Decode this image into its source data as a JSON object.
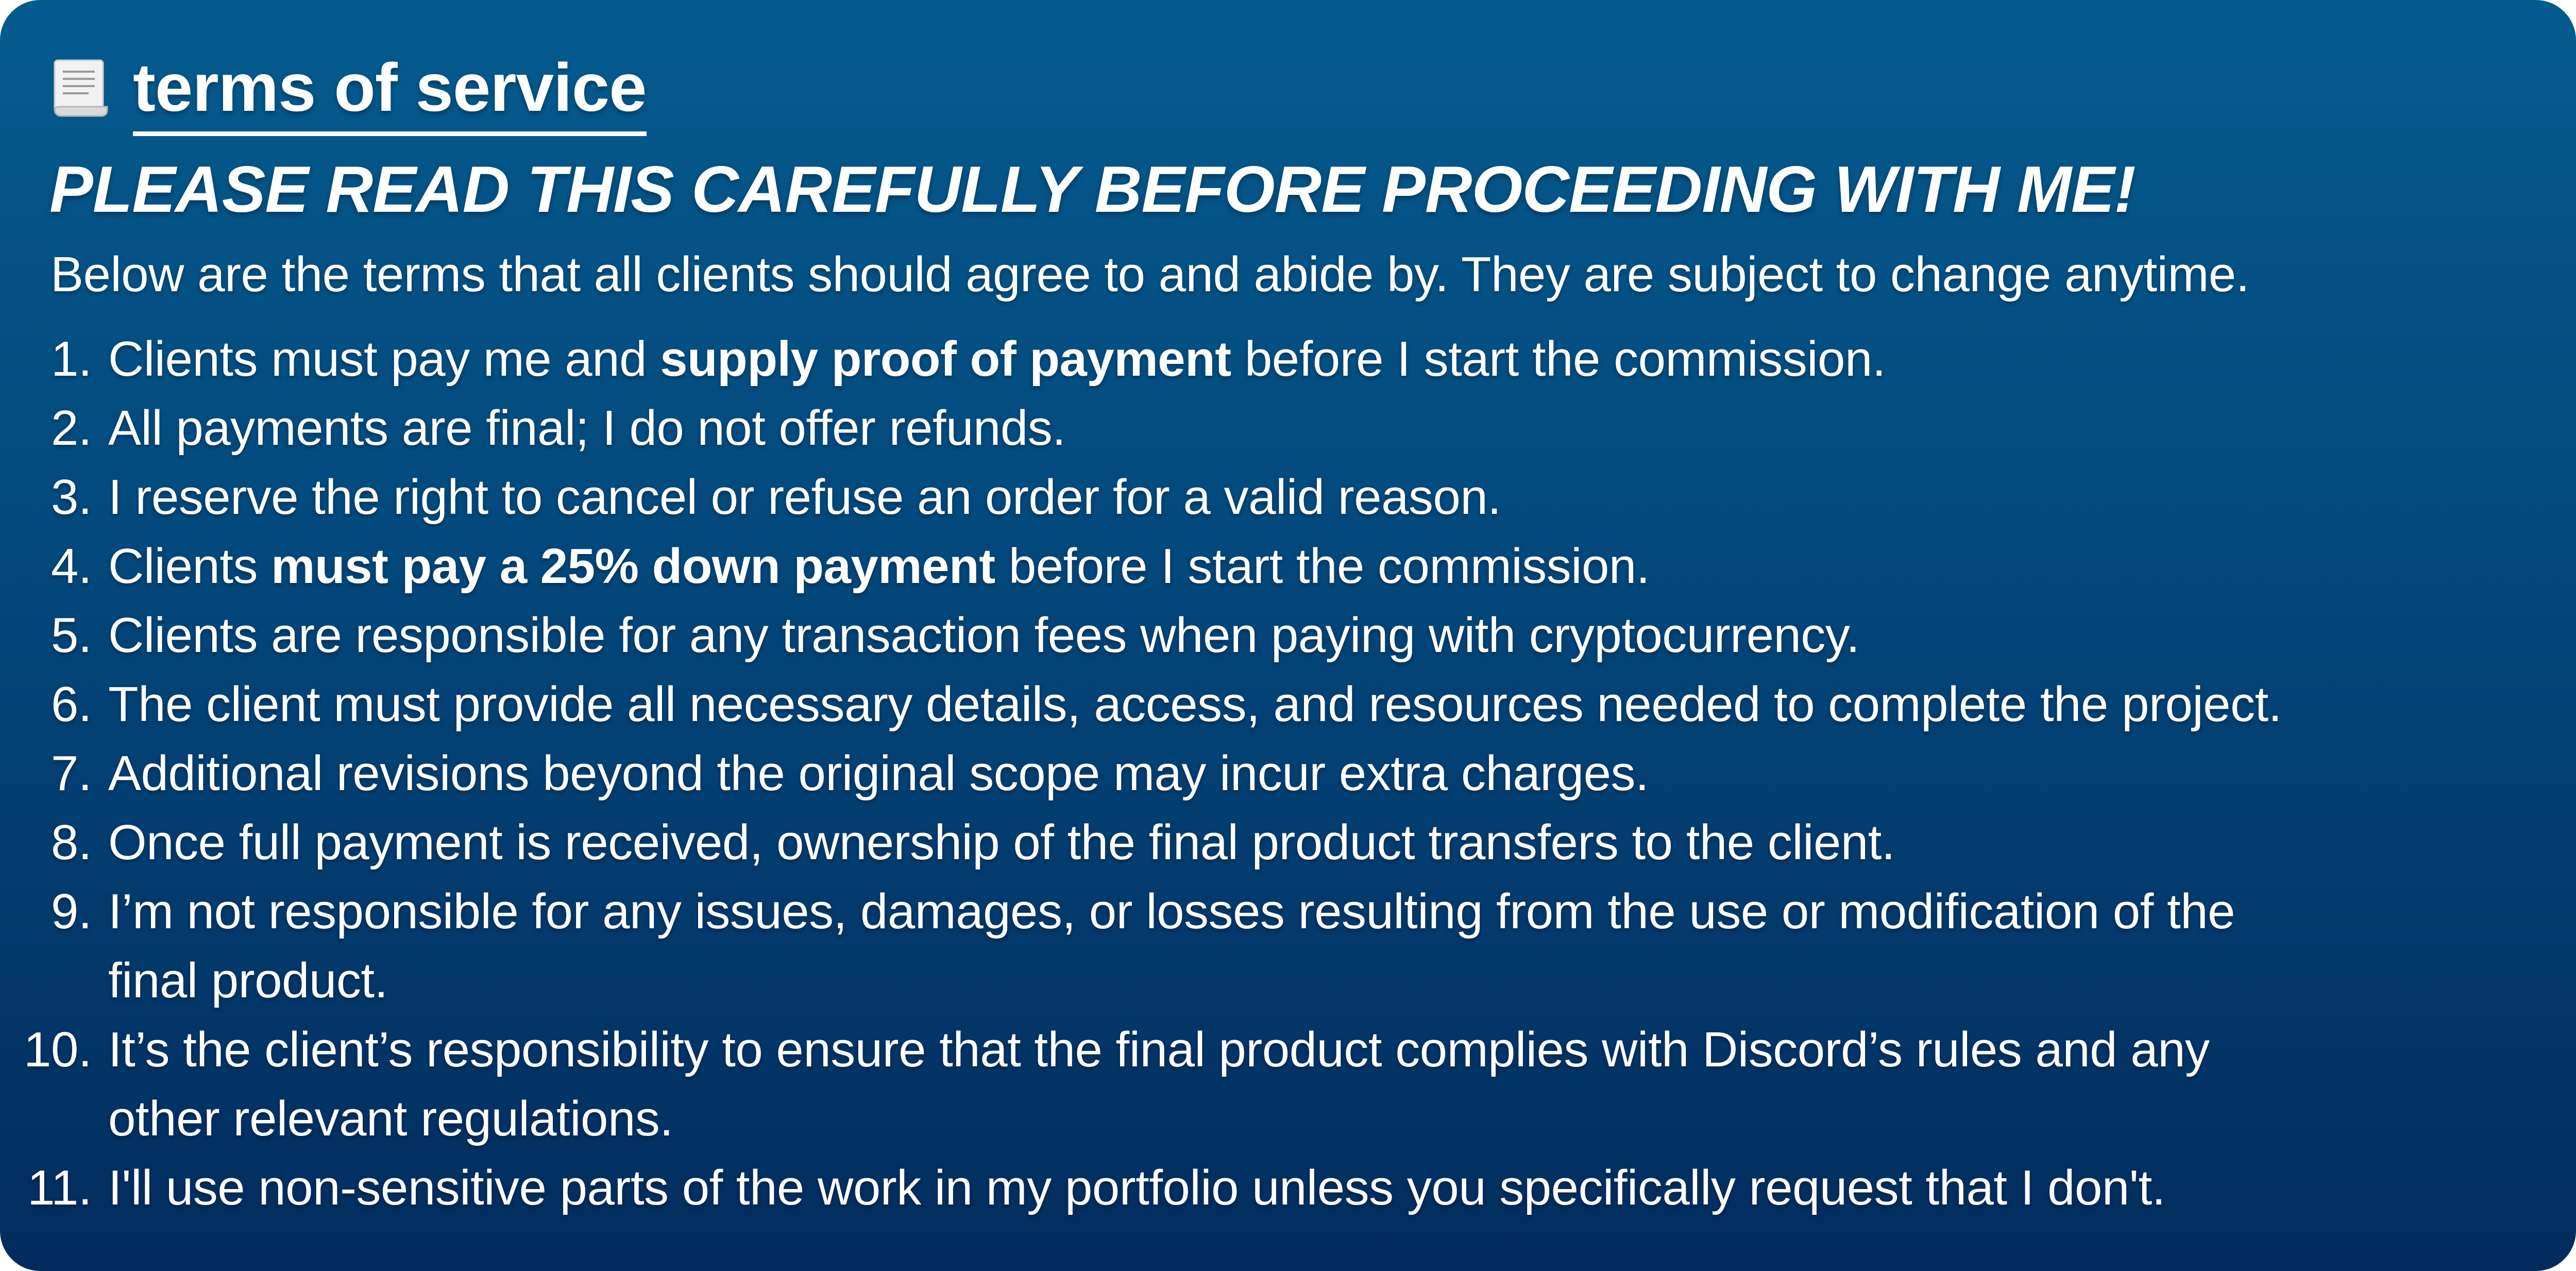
{
  "header": {
    "icon": "scroll-icon",
    "title": "terms of service"
  },
  "headline": "PLEASE READ THIS CAREFULLY BEFORE PROCEEDING WITH ME!",
  "intro": "Below are the terms that all clients should agree to and abide by. They are subject to change anytime.",
  "colors": {
    "background_top": "#045b8e",
    "background_bottom": "#032c5e",
    "text": "#ffffff"
  },
  "terms": [
    {
      "number": "1.",
      "before": "Clients must pay me and ",
      "bold": "supply proof of payment",
      "after": " before I start the commission."
    },
    {
      "number": "2.",
      "text": "All payments are final; I do not offer refunds."
    },
    {
      "number": "3.",
      "text": "I reserve the right to cancel or refuse an order for a valid reason."
    },
    {
      "number": "4.",
      "before": "Clients ",
      "bold": "must pay a 25% down payment",
      "after": " before I start the commission."
    },
    {
      "number": "5.",
      "text": "Clients are responsible for any transaction fees when paying with cryptocurrency."
    },
    {
      "number": "6.",
      "text": "The client must provide all necessary details, access, and resources needed to complete the project."
    },
    {
      "number": "7.",
      "text": "Additional revisions beyond the original scope may incur extra charges."
    },
    {
      "number": "8.",
      "text": "Once full payment is received, ownership of the final product transfers to the client."
    },
    {
      "number": "9.",
      "line1": "I’m not responsible for any issues, damages, or losses resulting from the use or modification of the",
      "line2": "final product."
    },
    {
      "number": "10.",
      "line1": "It’s the client’s responsibility to ensure that the final product complies with Discord’s rules and any",
      "line2": "other relevant regulations."
    },
    {
      "number": "11.",
      "text": "I'll use non-sensitive parts of the work in my portfolio unless you specifically request that I don't."
    }
  ]
}
